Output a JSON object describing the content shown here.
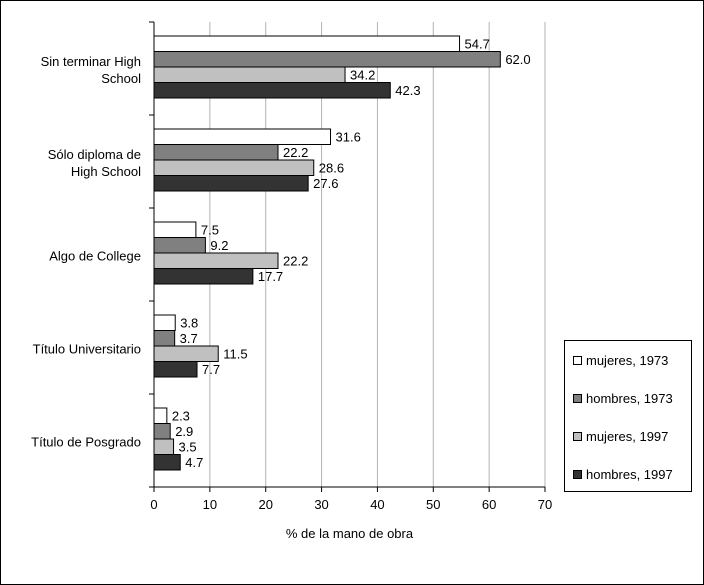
{
  "figure_title": "",
  "chart_data": {
    "type": "bar",
    "orientation": "horizontal",
    "title": "",
    "categories": [
      "Sin terminar High School",
      "Sólo diploma de High School",
      "Algo de College",
      "Título Universitario",
      "Título de Posgrado"
    ],
    "category_lines": [
      [
        "Sin terminar High",
        "School"
      ],
      [
        "Sólo diploma de",
        "High School"
      ],
      [
        "Algo de College"
      ],
      [
        "Título Universitario"
      ],
      [
        "Título de Posgrado"
      ]
    ],
    "series": [
      {
        "name": "mujeres, 1973",
        "color": "#ffffff",
        "values": [
          54.7,
          31.6,
          7.5,
          3.8,
          2.3
        ]
      },
      {
        "name": "hombres, 1973",
        "color": "#808080",
        "values": [
          62.0,
          22.2,
          9.2,
          3.7,
          2.9
        ]
      },
      {
        "name": "mujeres, 1997",
        "color": "#c0c0c0",
        "values": [
          34.2,
          28.6,
          22.2,
          11.5,
          3.5
        ]
      },
      {
        "name": "hombres, 1997",
        "color": "#333333",
        "values": [
          42.3,
          27.6,
          17.7,
          7.7,
          4.7
        ]
      }
    ],
    "xlabel": "% de la mano de obra",
    "ylabel": "",
    "xlim": [
      0,
      70
    ],
    "xticks": [
      "0",
      "10",
      "20",
      "30",
      "40",
      "50",
      "60",
      "70"
    ],
    "grid": "vertical",
    "legend_position": "right",
    "data_labels": true
  }
}
